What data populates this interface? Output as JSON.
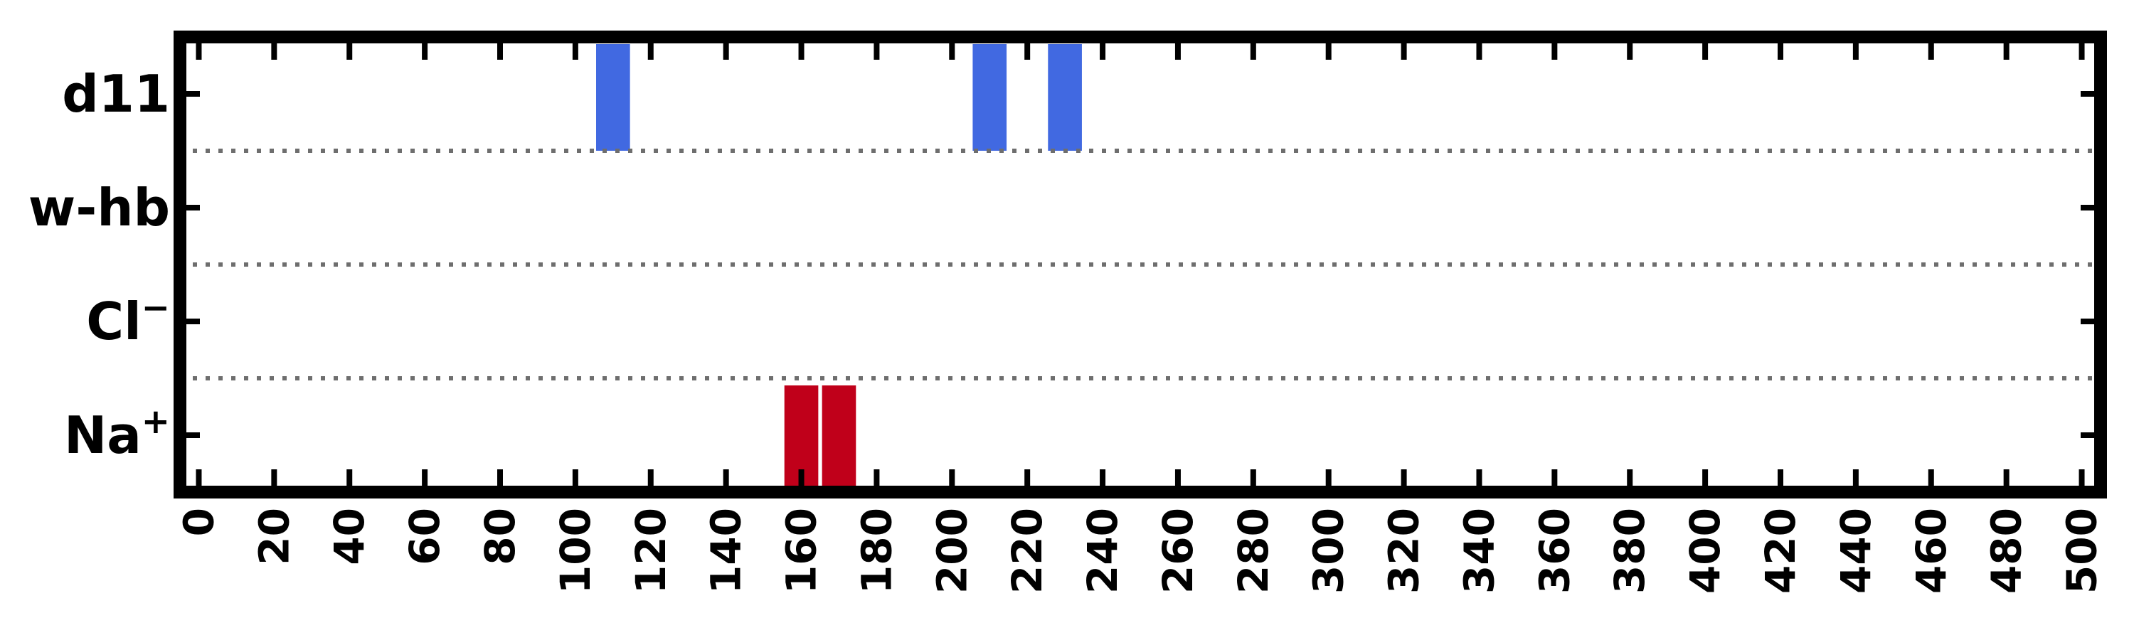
{
  "chart_data": {
    "type": "bar",
    "title": "",
    "xlabel": "",
    "ylabel": "",
    "xlim": [
      -5,
      505
    ],
    "xticks": [
      0,
      20,
      40,
      60,
      80,
      100,
      120,
      140,
      160,
      180,
      200,
      220,
      240,
      260,
      280,
      300,
      320,
      340,
      360,
      380,
      400,
      420,
      440,
      460,
      480,
      500
    ],
    "xtick_labels": [
      "0",
      "20",
      "40",
      "60",
      "80",
      "100",
      "120",
      "140",
      "160",
      "180",
      "200",
      "220",
      "240",
      "260",
      "280",
      "300",
      "320",
      "340",
      "360",
      "380",
      "400",
      "420",
      "440",
      "460",
      "480",
      "500"
    ],
    "grid": false,
    "row_separators": "dotted",
    "rows": [
      {
        "label": "d11",
        "label_base": "d11",
        "label_sup": "",
        "color": "#4169e1",
        "events": [
          110,
          210,
          230
        ]
      },
      {
        "label": "w-hb",
        "label_base": "w-hb",
        "label_sup": "",
        "color": "#4169e1",
        "events": []
      },
      {
        "label": "Cl⁻",
        "label_base": "Cl",
        "label_sup": "−",
        "color": "#4169e1",
        "events": []
      },
      {
        "label": "Na⁺",
        "label_base": "Na",
        "label_sup": "+",
        "color": "#c0001a",
        "events": [
          160,
          170
        ]
      }
    ],
    "event_width": 9
  }
}
